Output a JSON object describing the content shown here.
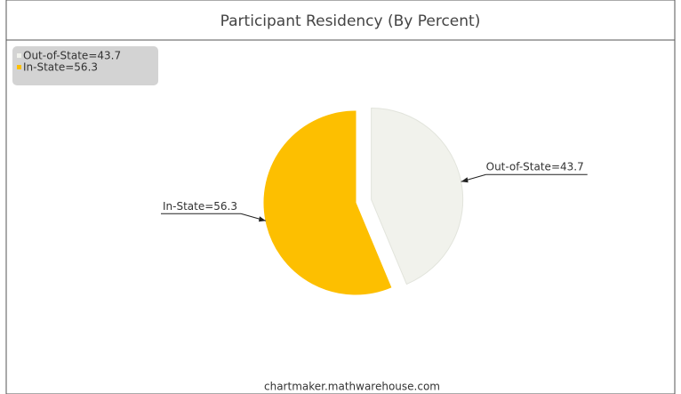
{
  "chart_data": {
    "type": "pie",
    "title": "Participant Residency (By Percent)",
    "categories": [
      "Out-of-State=43.7",
      "In-State=56.3"
    ],
    "values": [
      43.7,
      56.3
    ],
    "colors": [
      "#f1f2ec",
      "#fdbf00"
    ],
    "legend": "top-left",
    "source": "chartmaker.mathwarehouse.com"
  }
}
